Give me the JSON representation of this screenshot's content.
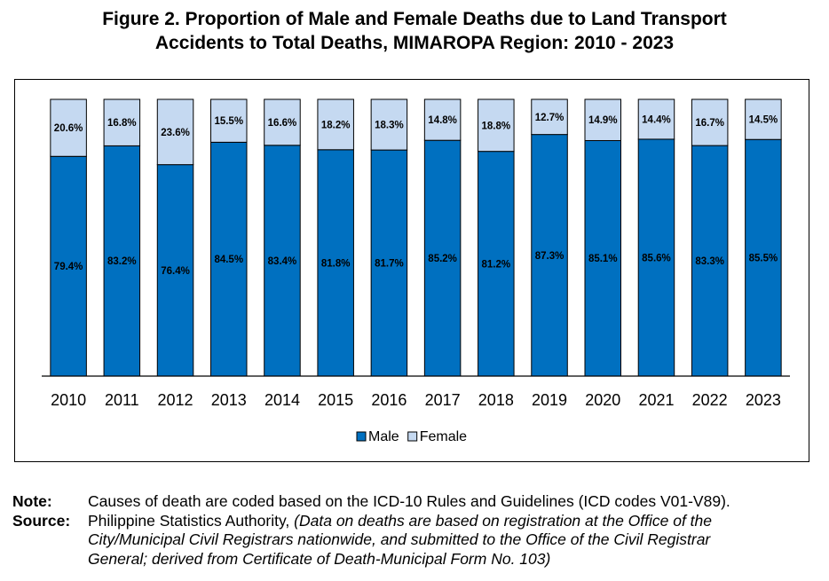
{
  "title_line1": "Figure 2. Proportion of Male and Female Deaths due to Land Transport",
  "title_line2": "Accidents to Total Deaths, MIMAROPA Region: 2010 - 2023",
  "chart_data": {
    "type": "bar",
    "stacked": true,
    "percent_stacked": true,
    "categories": [
      "2010",
      "2011",
      "2012",
      "2013",
      "2014",
      "2015",
      "2016",
      "2017",
      "2018",
      "2019",
      "2020",
      "2021",
      "2022",
      "2023"
    ],
    "series": [
      {
        "name": "Male",
        "color": "#0070C0",
        "values": [
          79.4,
          83.2,
          76.4,
          84.5,
          83.4,
          81.8,
          81.7,
          85.2,
          81.2,
          87.3,
          85.1,
          85.6,
          83.3,
          85.5
        ],
        "labels": [
          "79.4%",
          "83.2%",
          "76.4%",
          "84.5%",
          "83.4%",
          "81.8%",
          "81.7%",
          "85.2%",
          "81.2%",
          "87.3%",
          "85.1%",
          "85.6%",
          "83.3%",
          "85.5%"
        ]
      },
      {
        "name": "Female",
        "color": "#C5D9F1",
        "values": [
          20.6,
          16.8,
          23.6,
          15.5,
          16.6,
          18.2,
          18.3,
          14.8,
          18.8,
          12.7,
          14.9,
          14.4,
          16.7,
          14.5
        ],
        "labels": [
          "20.6%",
          "16.8%",
          "23.6%",
          "15.5%",
          "16.6%",
          "18.2%",
          "18.3%",
          "14.8%",
          "18.8%",
          "12.7%",
          "14.9%",
          "14.4%",
          "16.7%",
          "14.5%"
        ]
      }
    ],
    "ylim": [
      0,
      100
    ],
    "legend": "bottom",
    "grid": false
  },
  "notes": {
    "note_label": "Note:",
    "note_text": "Causes of death are coded based on the ICD-10 Rules and Guidelines (ICD codes V01-V89).",
    "source_label": "Source:",
    "source_text": "Philippine Statistics Authority,",
    "source_italic_line1": "(Data on deaths are based on registration at the Office of the",
    "source_italic_line2": "City/Municipal Civil Registrars nationwide, and submitted to the Office of the Civil Registrar",
    "source_italic_line3": "General; derived from Certificate of Death-Municipal Form No. 103)"
  }
}
